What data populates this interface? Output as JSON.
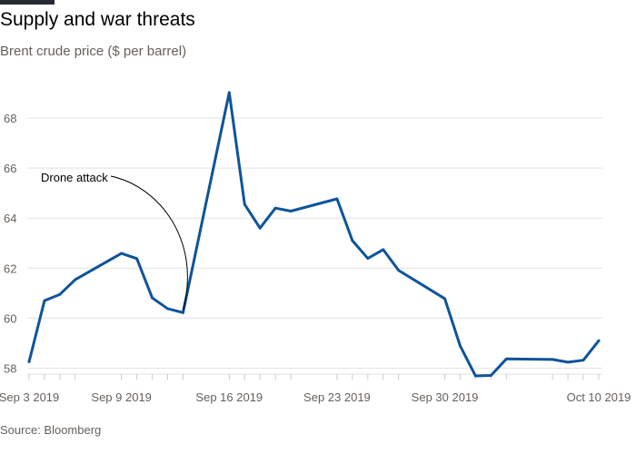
{
  "header": {
    "title": "Supply and war threats",
    "subtitle": "Brent crude price ($ per barrel)"
  },
  "footer": {
    "source": "Source: Bloomberg"
  },
  "colors": {
    "line": "#0f5499",
    "grid": "#e6e2de",
    "axis_text": "#66605c",
    "annotation": "#000000"
  },
  "chart_data": {
    "type": "line",
    "title": "",
    "xlabel": "",
    "ylabel": "Brent crude price ($ per barrel)",
    "ylim": [
      57.6,
      69.4
    ],
    "yticks": [
      58,
      60,
      62,
      64,
      66,
      68
    ],
    "grid": true,
    "x": [
      "2019-09-03",
      "2019-09-04",
      "2019-09-05",
      "2019-09-06",
      "2019-09-09",
      "2019-09-10",
      "2019-09-11",
      "2019-09-12",
      "2019-09-13",
      "2019-09-16",
      "2019-09-17",
      "2019-09-18",
      "2019-09-19",
      "2019-09-20",
      "2019-09-23",
      "2019-09-24",
      "2019-09-25",
      "2019-09-26",
      "2019-09-27",
      "2019-09-30",
      "2019-10-01",
      "2019-10-02",
      "2019-10-03",
      "2019-10-04",
      "2019-10-07",
      "2019-10-08",
      "2019-10-09",
      "2019-10-10"
    ],
    "series": [
      {
        "values": [
          58.26,
          60.7,
          60.95,
          61.54,
          62.59,
          62.38,
          60.81,
          60.38,
          60.22,
          69.02,
          64.55,
          63.6,
          64.4,
          64.28,
          64.77,
          63.1,
          62.39,
          62.74,
          61.91,
          60.78,
          58.89,
          57.69,
          57.71,
          58.37,
          58.35,
          58.24,
          58.32,
          59.1
        ]
      }
    ],
    "xtick_labels": [
      {
        "label": "Sep 3 2019",
        "x": "2019-09-03"
      },
      {
        "label": "Sep 9 2019",
        "x": "2019-09-09"
      },
      {
        "label": "Sep 16 2019",
        "x": "2019-09-16"
      },
      {
        "label": "Sep 23 2019",
        "x": "2019-09-23"
      },
      {
        "label": "Sep 30 2019",
        "x": "2019-09-30"
      },
      {
        "label": "Oct 10 2019",
        "x": "2019-10-10"
      }
    ],
    "annotations": [
      {
        "text": "Drone attack",
        "x": "2019-09-13",
        "y": 60.22
      }
    ]
  }
}
